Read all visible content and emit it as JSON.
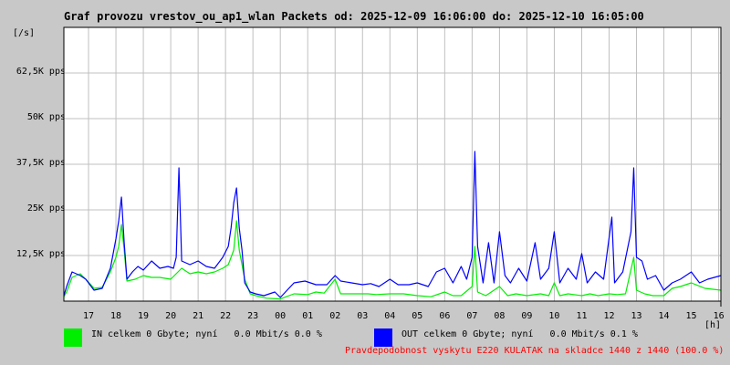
{
  "chart_data": {
    "type": "line",
    "title": "Graf provozu vrestov_ou_ap1_wlan Packets od: 2025-12-09 16:06:00 do: 2025-12-10 16:05:00",
    "ylabel": "[/s]",
    "xlabel": "[h]",
    "ylim": [
      0,
      75000
    ],
    "yticks": [
      {
        "value": 12500,
        "label": "12,5K pps"
      },
      {
        "value": 25000,
        "label": "25K pps"
      },
      {
        "value": 37500,
        "label": "37,5K pps"
      },
      {
        "value": 50000,
        "label": "50K pps"
      },
      {
        "value": 62500,
        "label": "62,5K pps"
      }
    ],
    "x_start_hour": 16.1,
    "xlim": [
      16.1,
      40.08
    ],
    "xticks": [
      "17",
      "18",
      "19",
      "20",
      "21",
      "22",
      "23",
      "00",
      "01",
      "02",
      "03",
      "04",
      "05",
      "06",
      "07",
      "08",
      "09",
      "10",
      "11",
      "12",
      "13",
      "14",
      "15",
      "16"
    ],
    "grid": true,
    "series": [
      {
        "name": "IN",
        "color": "#00ee00",
        "points": [
          [
            16.1,
            1200
          ],
          [
            16.2,
            2500
          ],
          [
            16.4,
            6500
          ],
          [
            16.7,
            7500
          ],
          [
            16.9,
            6000
          ],
          [
            17.0,
            5200
          ],
          [
            17.2,
            3500
          ],
          [
            17.5,
            3800
          ],
          [
            17.8,
            8000
          ],
          [
            18.0,
            12000
          ],
          [
            18.1,
            15000
          ],
          [
            18.2,
            21000
          ],
          [
            18.3,
            14000
          ],
          [
            18.4,
            5500
          ],
          [
            18.7,
            6000
          ],
          [
            19.0,
            7000
          ],
          [
            19.3,
            6500
          ],
          [
            19.6,
            6500
          ],
          [
            20.0,
            6000
          ],
          [
            20.2,
            7500
          ],
          [
            20.4,
            9000
          ],
          [
            20.7,
            7500
          ],
          [
            21.0,
            8000
          ],
          [
            21.3,
            7500
          ],
          [
            21.6,
            8000
          ],
          [
            21.9,
            9000
          ],
          [
            22.1,
            10000
          ],
          [
            22.2,
            12000
          ],
          [
            22.3,
            14000
          ],
          [
            22.4,
            22000
          ],
          [
            22.5,
            14000
          ],
          [
            22.7,
            6000
          ],
          [
            22.9,
            2000
          ],
          [
            23.1,
            1500
          ],
          [
            23.5,
            800
          ],
          [
            24.0,
            600
          ],
          [
            24.5,
            2000
          ],
          [
            25.0,
            1800
          ],
          [
            25.3,
            2500
          ],
          [
            25.6,
            2200
          ],
          [
            26.0,
            6000
          ],
          [
            26.2,
            2000
          ],
          [
            26.8,
            2000
          ],
          [
            27.2,
            2000
          ],
          [
            27.5,
            1800
          ],
          [
            28.0,
            2000
          ],
          [
            28.5,
            2000
          ],
          [
            29.0,
            1500
          ],
          [
            29.5,
            1200
          ],
          [
            30.0,
            2500
          ],
          [
            30.3,
            1500
          ],
          [
            30.6,
            1500
          ],
          [
            31.0,
            4000
          ],
          [
            31.1,
            15000
          ],
          [
            31.2,
            2500
          ],
          [
            31.5,
            1500
          ],
          [
            32.0,
            4000
          ],
          [
            32.3,
            1500
          ],
          [
            32.6,
            2000
          ],
          [
            33.0,
            1500
          ],
          [
            33.5,
            2000
          ],
          [
            33.8,
            1500
          ],
          [
            34.0,
            5000
          ],
          [
            34.2,
            1500
          ],
          [
            34.5,
            2000
          ],
          [
            35.0,
            1500
          ],
          [
            35.3,
            2000
          ],
          [
            35.6,
            1500
          ],
          [
            36.0,
            2000
          ],
          [
            36.3,
            1800
          ],
          [
            36.6,
            2000
          ],
          [
            36.9,
            12000
          ],
          [
            37.0,
            3000
          ],
          [
            37.3,
            2000
          ],
          [
            37.6,
            1500
          ],
          [
            38.0,
            1500
          ],
          [
            38.3,
            3500
          ],
          [
            38.6,
            4000
          ],
          [
            39.0,
            5000
          ],
          [
            39.5,
            3500
          ],
          [
            40.08,
            3000
          ]
        ]
      },
      {
        "name": "OUT",
        "color": "#0000ff",
        "points": [
          [
            16.1,
            1500
          ],
          [
            16.2,
            4000
          ],
          [
            16.4,
            8000
          ],
          [
            16.7,
            7000
          ],
          [
            16.9,
            6000
          ],
          [
            17.0,
            5000
          ],
          [
            17.2,
            3000
          ],
          [
            17.5,
            3500
          ],
          [
            17.8,
            9000
          ],
          [
            18.0,
            17000
          ],
          [
            18.1,
            22000
          ],
          [
            18.2,
            28500
          ],
          [
            18.3,
            16000
          ],
          [
            18.4,
            6000
          ],
          [
            18.6,
            8000
          ],
          [
            18.8,
            9500
          ],
          [
            19.0,
            8500
          ],
          [
            19.3,
            11000
          ],
          [
            19.6,
            9000
          ],
          [
            19.9,
            9500
          ],
          [
            20.1,
            9000
          ],
          [
            20.2,
            12000
          ],
          [
            20.3,
            36500
          ],
          [
            20.4,
            11000
          ],
          [
            20.7,
            10000
          ],
          [
            21.0,
            11000
          ],
          [
            21.3,
            9500
          ],
          [
            21.6,
            9000
          ],
          [
            21.9,
            12000
          ],
          [
            22.1,
            15000
          ],
          [
            22.2,
            20000
          ],
          [
            22.3,
            27000
          ],
          [
            22.4,
            31000
          ],
          [
            22.5,
            20000
          ],
          [
            22.6,
            14000
          ],
          [
            22.7,
            5000
          ],
          [
            22.9,
            2500
          ],
          [
            23.1,
            2000
          ],
          [
            23.4,
            1500
          ],
          [
            23.8,
            2500
          ],
          [
            24.0,
            1000
          ],
          [
            24.5,
            5000
          ],
          [
            24.9,
            5500
          ],
          [
            25.3,
            4500
          ],
          [
            25.7,
            4500
          ],
          [
            26.0,
            7000
          ],
          [
            26.2,
            5500
          ],
          [
            26.6,
            5000
          ],
          [
            27.0,
            4500
          ],
          [
            27.3,
            4800
          ],
          [
            27.6,
            4000
          ],
          [
            28.0,
            6000
          ],
          [
            28.3,
            4500
          ],
          [
            28.7,
            4500
          ],
          [
            29.0,
            5000
          ],
          [
            29.4,
            4000
          ],
          [
            29.7,
            8000
          ],
          [
            30.0,
            9000
          ],
          [
            30.3,
            5000
          ],
          [
            30.6,
            9500
          ],
          [
            30.8,
            6000
          ],
          [
            31.0,
            12000
          ],
          [
            31.1,
            41000
          ],
          [
            31.2,
            15000
          ],
          [
            31.4,
            5000
          ],
          [
            31.6,
            16000
          ],
          [
            31.8,
            5000
          ],
          [
            32.0,
            19000
          ],
          [
            32.2,
            7000
          ],
          [
            32.4,
            5000
          ],
          [
            32.7,
            9000
          ],
          [
            33.0,
            5500
          ],
          [
            33.3,
            16000
          ],
          [
            33.5,
            6000
          ],
          [
            33.8,
            9000
          ],
          [
            34.0,
            19000
          ],
          [
            34.2,
            5000
          ],
          [
            34.5,
            9000
          ],
          [
            34.8,
            6000
          ],
          [
            35.0,
            13000
          ],
          [
            35.2,
            5000
          ],
          [
            35.5,
            8000
          ],
          [
            35.8,
            6000
          ],
          [
            36.1,
            23000
          ],
          [
            36.2,
            5000
          ],
          [
            36.5,
            8000
          ],
          [
            36.8,
            19000
          ],
          [
            36.9,
            36500
          ],
          [
            37.0,
            12000
          ],
          [
            37.2,
            11000
          ],
          [
            37.4,
            6000
          ],
          [
            37.7,
            7000
          ],
          [
            38.0,
            3000
          ],
          [
            38.3,
            5000
          ],
          [
            38.6,
            6000
          ],
          [
            39.0,
            8000
          ],
          [
            39.3,
            5000
          ],
          [
            39.6,
            6000
          ],
          [
            40.08,
            7000
          ]
        ]
      }
    ]
  },
  "legend": {
    "in_text": "IN celkem 0 Gbyte; nyní   0.0 Mbit/s 0.0 %",
    "out_text": "OUT celkem 0 Gbyte; nyní   0.0 Mbit/s 0.1 %",
    "in_color": "#00ee00",
    "out_color": "#0000ff"
  },
  "footnote": "Pravdepodobnost vyskytu E220 KULATAK na skladce 1440 z 1440 (100.0 %)"
}
